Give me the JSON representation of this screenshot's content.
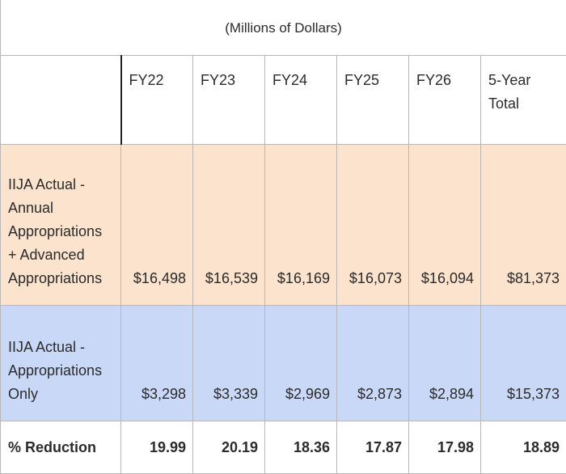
{
  "caption": "(Millions of Dollars)",
  "columns": [
    "FY22",
    "FY23",
    "FY24",
    "FY25",
    "FY26",
    "5-Year Total"
  ],
  "rows": [
    {
      "label": "IIJA Actual - Annual Appropriations + Advanced Appropriations",
      "values": [
        "$16,498",
        "$16,539",
        "$16,169",
        "$16,073",
        "$16,094",
        "$81,373"
      ],
      "color": "#fce3cd"
    },
    {
      "label": "IIJA Actual - Appropriations Only",
      "values": [
        "$3,298",
        "$3,339",
        "$2,969",
        "$2,873",
        "$2,894",
        "$15,373"
      ],
      "color": "#c9d8f6"
    },
    {
      "label": "% Reduction",
      "values": [
        "19.99",
        "20.19",
        "18.36",
        "17.87",
        "17.98",
        "18.89"
      ]
    }
  ]
}
